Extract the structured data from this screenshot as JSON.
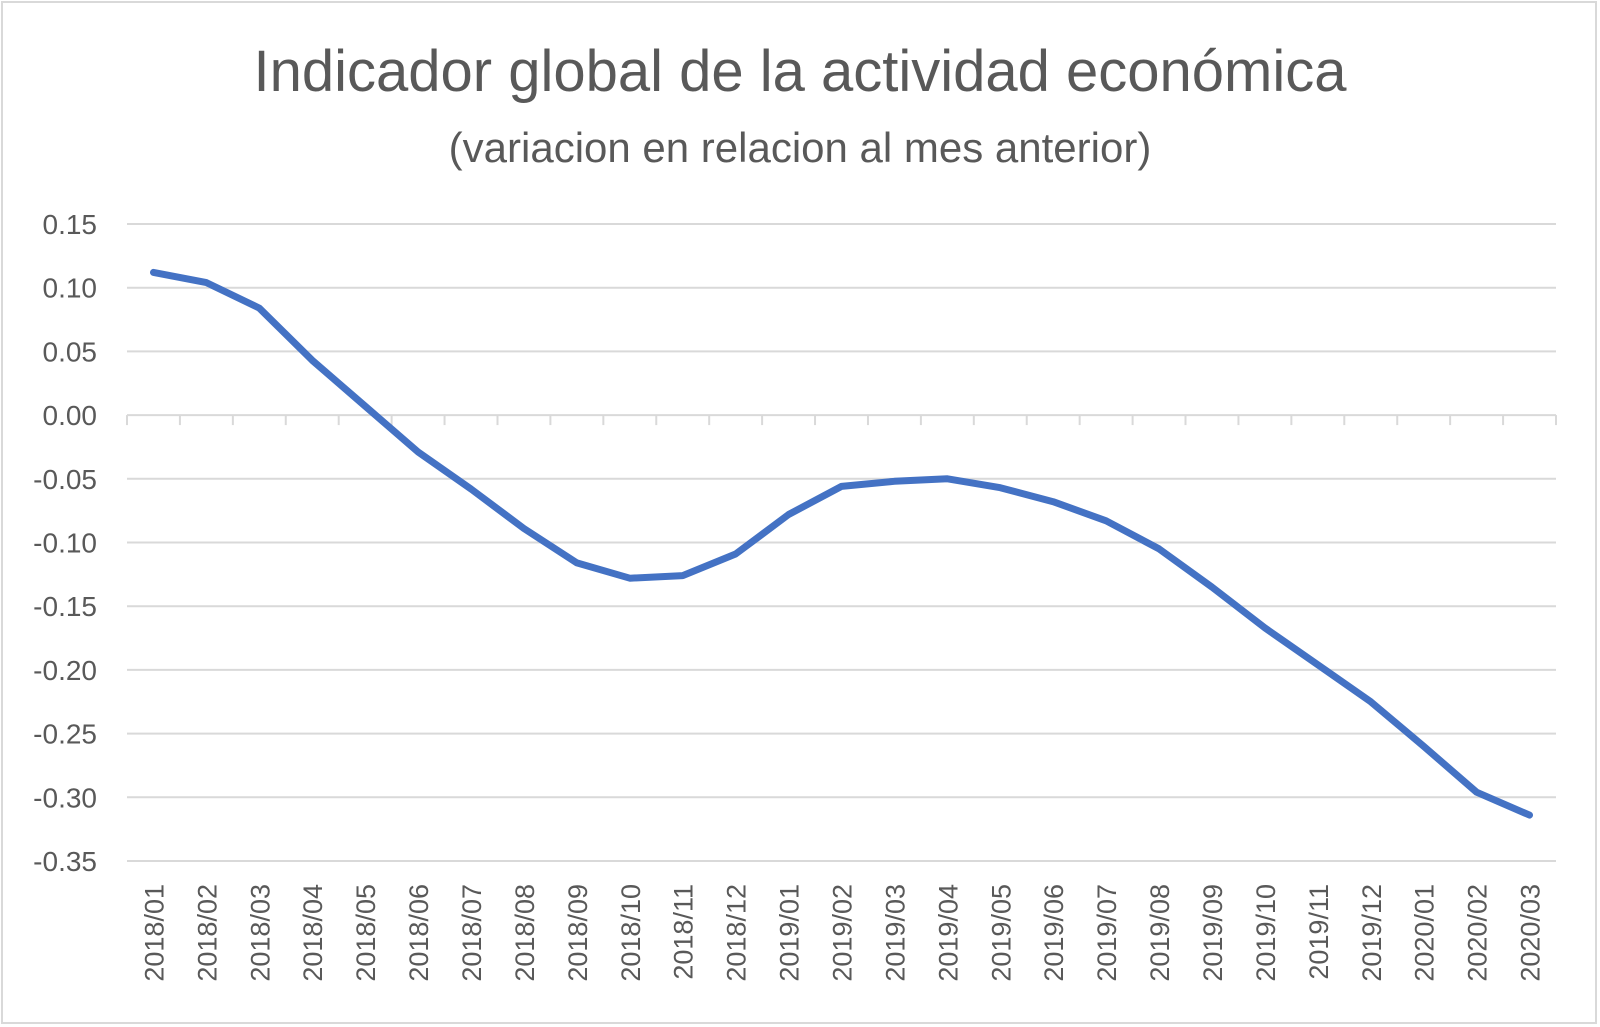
{
  "chart_data": {
    "type": "line",
    "title": "Indicador global de la actividad económica",
    "subtitle": "(variacion en relacion al mes anterior)",
    "xlabel": "",
    "ylabel": "",
    "categories": [
      "2018/01",
      "2018/02",
      "2018/03",
      "2018/04",
      "2018/05",
      "2018/06",
      "2018/07",
      "2018/08",
      "2018/09",
      "2018/10",
      "2018/11",
      "2018/12",
      "2019/01",
      "2019/02",
      "2019/03",
      "2019/04",
      "2019/05",
      "2019/06",
      "2019/07",
      "2019/08",
      "2019/09",
      "2019/10",
      "2019/11",
      "2019/12",
      "2020/01",
      "2020/02",
      "2020/03"
    ],
    "series": [
      {
        "values": [
          0.112,
          0.104,
          0.084,
          0.043,
          0.007,
          -0.029,
          -0.058,
          -0.089,
          -0.116,
          -0.128,
          -0.126,
          -0.109,
          -0.078,
          -0.056,
          -0.052,
          -0.05,
          -0.057,
          -0.068,
          -0.083,
          -0.105,
          -0.135,
          -0.167,
          -0.196,
          -0.225,
          -0.26,
          -0.296,
          -0.314
        ],
        "color": "#4472c4"
      }
    ],
    "yticks": [
      "0.15",
      "0.10",
      "0.05",
      "0.00",
      "-0.05",
      "-0.10",
      "-0.15",
      "-0.20",
      "-0.25",
      "-0.30",
      "-0.35"
    ],
    "ylim": [
      -0.35,
      0.15
    ],
    "grid": true,
    "legend": "none"
  }
}
